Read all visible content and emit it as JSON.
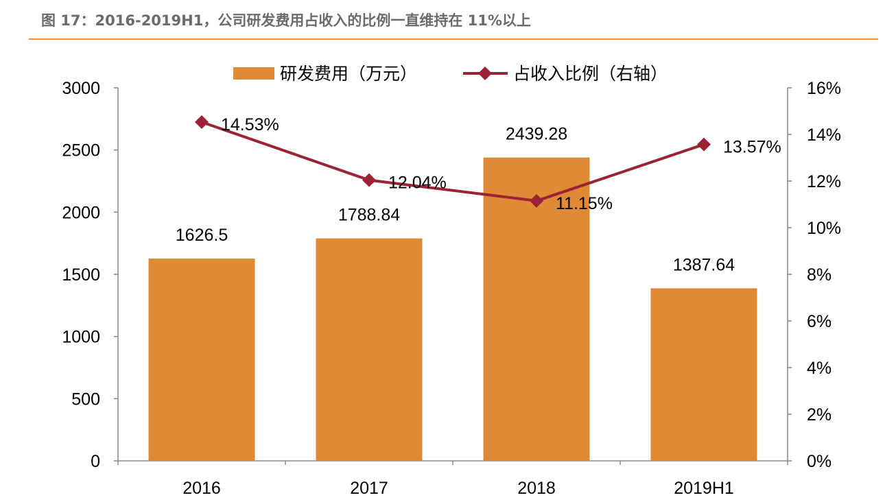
{
  "title": "图 17：2016-2019H1，公司研发费用占收入的比例一直维持在 11%以上",
  "chart_data": {
    "type": "bar+line",
    "categories": [
      "2016",
      "2017",
      "2018",
      "2019H1"
    ],
    "series": [
      {
        "name": "研发费用（万元）",
        "type": "bar",
        "axis": "left",
        "values": [
          1626.5,
          1788.84,
          2439.28,
          1387.64
        ],
        "labels": [
          "1626.5",
          "1788.84",
          "2439.28",
          "1387.64"
        ],
        "color": "#E08A35"
      },
      {
        "name": "占收入比例（右轴）",
        "type": "line",
        "axis": "right",
        "values": [
          14.53,
          12.04,
          11.15,
          13.57
        ],
        "labels": [
          "14.53%",
          "12.04%",
          "11.15%",
          "13.57%"
        ],
        "color": "#9B2335"
      }
    ],
    "left_axis": {
      "range": [
        0,
        3000
      ],
      "ticks": [
        "0",
        "500",
        "1000",
        "1500",
        "2000",
        "2500",
        "3000"
      ]
    },
    "right_axis": {
      "range": [
        0,
        16
      ],
      "ticks": [
        "0%",
        "2%",
        "4%",
        "6%",
        "8%",
        "10%",
        "12%",
        "14%",
        "16%"
      ]
    },
    "grid": false,
    "legend": "top"
  }
}
